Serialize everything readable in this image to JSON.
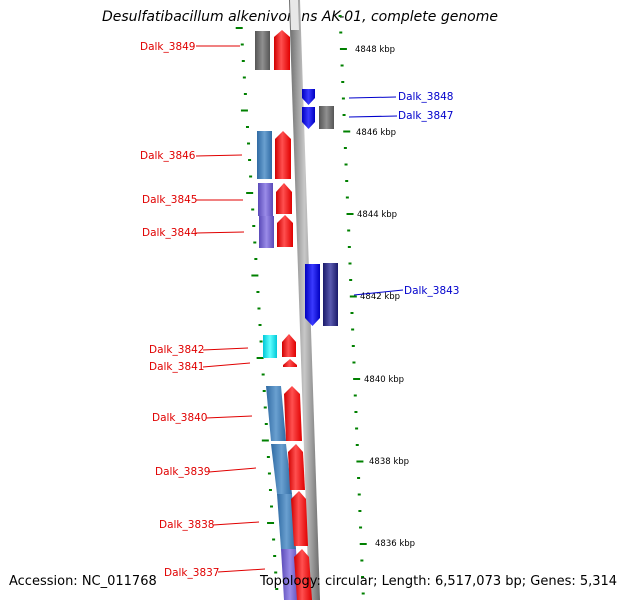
{
  "title": "Desulfatibacillum alkenivorans AK-01, complete genome",
  "footer": {
    "accession": "Accession: NC_011768",
    "summary": "Topology: circular; Length: 6,517,073 bp; Genes: 5,314"
  },
  "colors": {
    "left_label": "#e00000",
    "right_label": "#0000cc",
    "tick": "#008000",
    "axis": "#8a8a8a",
    "protein": "#ff0000",
    "gene_blue": "#4b82b8",
    "gene_purple": "#7a6cd0",
    "gene_gray": "#707070",
    "gene_cyan": "#00e5ee",
    "gene_strong_blue": "#0000ee",
    "gene_navy": "#2a2a8a"
  },
  "scale_labels": [
    "4848 kbp",
    "4846 kbp",
    "4844 kbp",
    "4842 kbp",
    "4840 kbp",
    "4838 kbp",
    "4836 kbp"
  ],
  "genes_left": [
    {
      "label": "Dalk_3849",
      "gene_color": "gray"
    },
    {
      "label": "Dalk_3846",
      "gene_color": "blue"
    },
    {
      "label": "Dalk_3845",
      "gene_color": "purple"
    },
    {
      "label": "Dalk_3844",
      "gene_color": "purple"
    },
    {
      "label": "Dalk_3842",
      "gene_color": "cyan"
    },
    {
      "label": "Dalk_3841",
      "gene_color": "none"
    },
    {
      "label": "Dalk_3840",
      "gene_color": "blue"
    },
    {
      "label": "Dalk_3839",
      "gene_color": "blue"
    },
    {
      "label": "Dalk_3838",
      "gene_color": "blue"
    },
    {
      "label": "Dalk_3837",
      "gene_color": "purple"
    }
  ],
  "genes_right": [
    {
      "label": "Dalk_3848",
      "gene_color": "strong_blue"
    },
    {
      "label": "Dalk_3847",
      "gene_color": "gray"
    },
    {
      "label": "Dalk_3843",
      "gene_color": "strong_blue"
    }
  ]
}
